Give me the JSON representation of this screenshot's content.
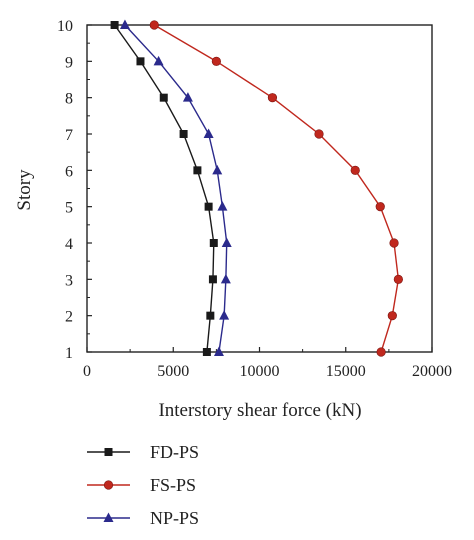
{
  "chart_data": {
    "type": "line",
    "title": "",
    "xlabel": "Interstory shear force (kN)",
    "ylabel": "Story",
    "xlim": [
      0,
      20000
    ],
    "ylim": [
      1,
      10
    ],
    "xticks": [
      0,
      5000,
      10000,
      15000,
      20000
    ],
    "yticks": [
      1,
      2,
      3,
      4,
      5,
      6,
      7,
      8,
      9,
      10
    ],
    "grid": false,
    "legend": "bottom-left",
    "series": [
      {
        "name": "FD-PS",
        "color": "#1a1a1a",
        "marker": "square",
        "x": [
          6950,
          7150,
          7300,
          7350,
          7050,
          6400,
          5600,
          4450,
          3100,
          1600
        ],
        "y": [
          1,
          2,
          3,
          4,
          5,
          6,
          7,
          8,
          9,
          10
        ]
      },
      {
        "name": "FS-PS",
        "color": "#c0281e",
        "marker": "circle",
        "x": [
          17050,
          17700,
          18050,
          17800,
          17000,
          15550,
          13450,
          10750,
          7500,
          3900
        ],
        "y": [
          1,
          2,
          3,
          4,
          5,
          6,
          7,
          8,
          9,
          10
        ]
      },
      {
        "name": "NP-PS",
        "color": "#2b2a8c",
        "marker": "triangle",
        "x": [
          7650,
          7950,
          8050,
          8100,
          7850,
          7550,
          7050,
          5850,
          4150,
          2200
        ],
        "y": [
          1,
          2,
          3,
          4,
          5,
          6,
          7,
          8,
          9,
          10
        ]
      }
    ]
  }
}
